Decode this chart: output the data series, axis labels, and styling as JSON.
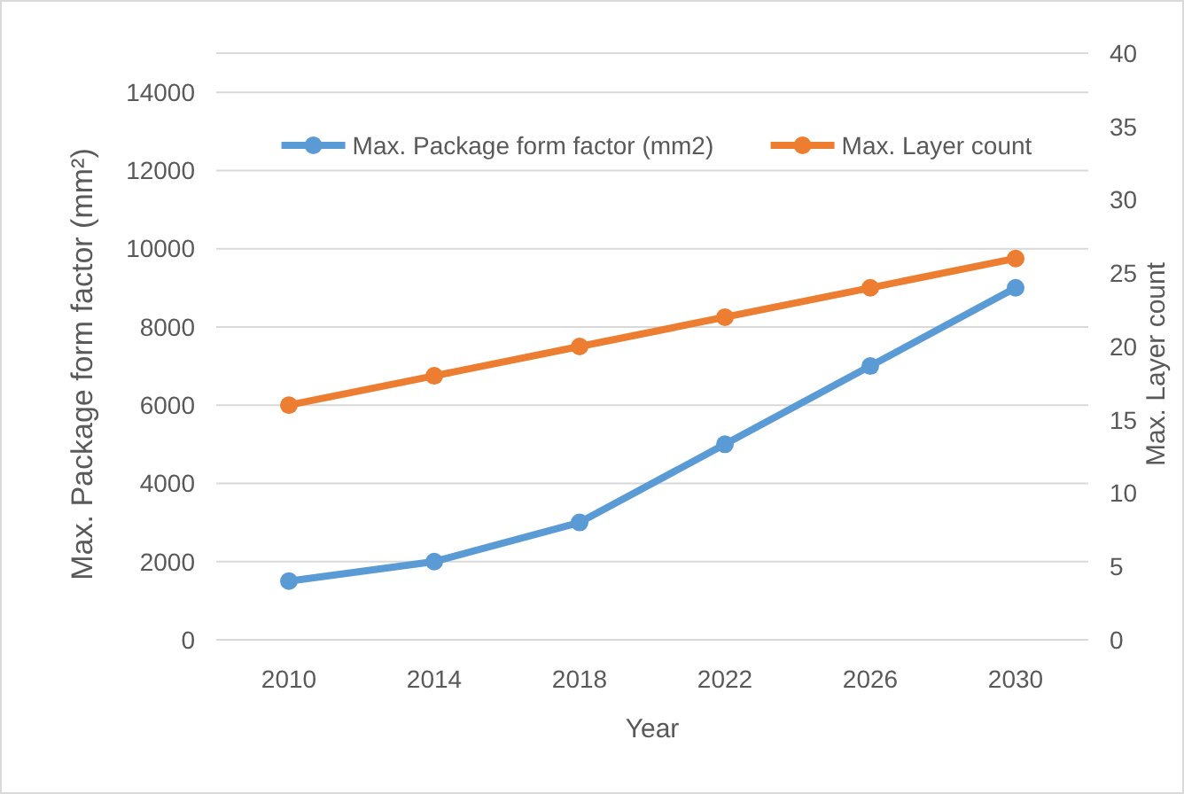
{
  "chart_data": {
    "type": "line",
    "xlabel": "Year",
    "ylabel": "Max. Package form factor (mm²)",
    "y2label": "Max. Layer count",
    "categories": [
      "2010",
      "2014",
      "2018",
      "2022",
      "2026",
      "2030"
    ],
    "series": [
      {
        "name": "Max. Package form factor (mm2)",
        "color": "#5b9bd5",
        "values": [
          1500,
          2000,
          3000,
          5000,
          7000,
          9000
        ]
      },
      {
        "name": "Max. Layer count",
        "color": "#ed7d31",
        "values": [
          16,
          18,
          20,
          22,
          24,
          26
        ],
        "axis": "y2"
      }
    ],
    "ylim": [
      0,
      15000
    ],
    "yticks": [
      0,
      2000,
      4000,
      6000,
      8000,
      10000,
      12000,
      14000
    ],
    "y2lim": [
      0,
      40
    ],
    "y2ticks": [
      0,
      5,
      10,
      15,
      20,
      25,
      30,
      35,
      40
    ],
    "grid": "y",
    "legend": "top",
    "marker": "circle",
    "line_style": "solid"
  }
}
